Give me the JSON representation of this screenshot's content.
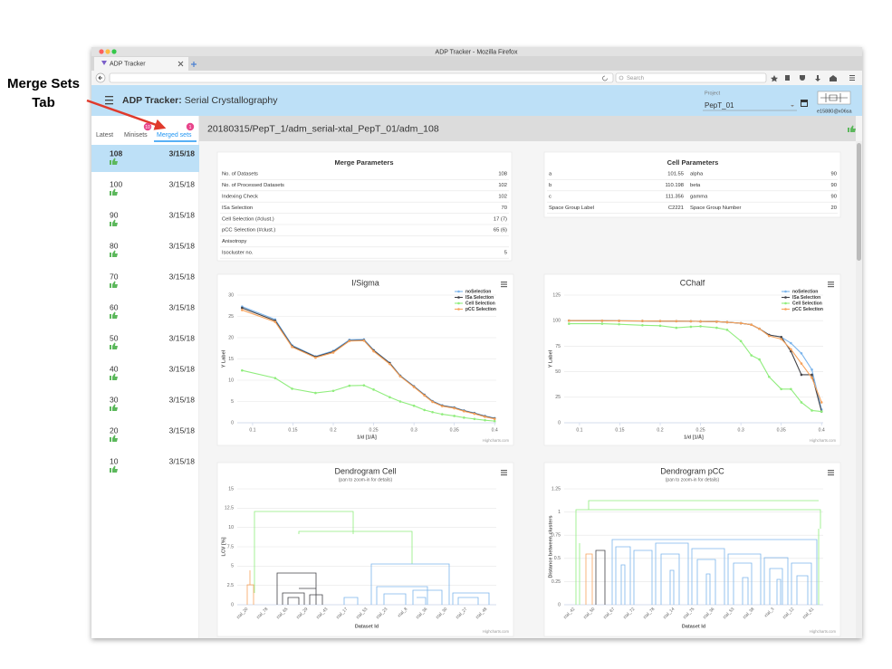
{
  "annotation": [
    "Merge Sets",
    "Tab"
  ],
  "browser": {
    "window_title": "ADP Tracker - Mozilla Firefox",
    "tab": "ADP Tracker",
    "search": "Search"
  },
  "header": {
    "title_bold": "ADP Tracker:",
    "title": "Serial Crystallography",
    "project_label": "Project",
    "project": "PepT_01",
    "user": "e15880@x06sa"
  },
  "sidebar": {
    "tabs": [
      "Latest",
      "Minisets",
      "Merged sets"
    ],
    "badges": [
      10,
      1
    ],
    "items": [
      {
        "id": 108,
        "date": "3/15/18"
      },
      {
        "id": 100,
        "date": "3/15/18"
      },
      {
        "id": 90,
        "date": "3/15/18"
      },
      {
        "id": 80,
        "date": "3/15/18"
      },
      {
        "id": 70,
        "date": "3/15/18"
      },
      {
        "id": 60,
        "date": "3/15/18"
      },
      {
        "id": 50,
        "date": "3/15/18"
      },
      {
        "id": 40,
        "date": "3/15/18"
      },
      {
        "id": 30,
        "date": "3/15/18"
      },
      {
        "id": 20,
        "date": "3/15/18"
      },
      {
        "id": 10,
        "date": "3/15/18"
      }
    ]
  },
  "path": "20180315/PepT_1/adm_serial-xtal_PepT_01/adm_108",
  "merge_parameters": {
    "title": "Merge Parameters",
    "rows": [
      [
        "No. of Datasets",
        108
      ],
      [
        "No. of Processed Datasets",
        102
      ],
      [
        "Indexing Check",
        102
      ],
      [
        "ISa Selection",
        70
      ],
      [
        "Cell Selection (#clust.)",
        "17 (7)"
      ],
      [
        "pCC Selection (#clust.)",
        "65 (6)"
      ],
      [
        "Anisotropy"
      ],
      [
        "Isocluster no.",
        5
      ]
    ]
  },
  "cell_parameters": {
    "title": "Cell Parameters",
    "rows": [
      [
        "a",
        101.55,
        "alpha",
        90
      ],
      [
        "b",
        110.198,
        "beta",
        90
      ],
      [
        "c",
        111.356,
        "gamma",
        90
      ],
      [
        "Space Group Label",
        "C2221",
        "Space Group Number",
        20
      ]
    ]
  },
  "chart_data": [
    {
      "type": "line",
      "title": "I/Sigma",
      "xlabel": "1/d [1/Å]",
      "ylabel": "Y Label",
      "credits": "Highcharts.com",
      "legend": "top-right",
      "x": [
        0.087,
        0.128,
        0.149,
        0.178,
        0.2,
        0.22,
        0.238,
        0.25,
        0.27,
        0.283,
        0.3,
        0.313,
        0.323,
        0.335,
        0.35,
        0.362,
        0.375,
        0.388,
        0.4
      ],
      "xlim": [
        0.081,
        0.402
      ],
      "xticks": [
        0.1,
        0.15,
        0.2,
        0.25,
        0.3,
        0.35,
        0.4
      ],
      "ylim": [
        0,
        30
      ],
      "yticks": [
        0,
        5,
        10,
        15,
        20,
        25,
        30
      ],
      "series": [
        {
          "name": "noSelection",
          "color": "#7cb5ec",
          "values": [
            27.3,
            24.3,
            18.2,
            15.6,
            16.9,
            19.5,
            19.6,
            17.1,
            14.1,
            11.1,
            8.6,
            6.6,
            5.1,
            4.1,
            3.6,
            2.9,
            2.3,
            1.6,
            1.1
          ]
        },
        {
          "name": "ISa Selection",
          "color": "#434348",
          "values": [
            27,
            24,
            18,
            15.5,
            16.7,
            19.3,
            19.4,
            17,
            14,
            11,
            8.5,
            6.5,
            5,
            4,
            3.5,
            2.8,
            2.2,
            1.5,
            1
          ]
        },
        {
          "name": "Cell Selection",
          "color": "#90ed7d",
          "values": [
            12.3,
            10.5,
            8,
            7,
            7.5,
            8.7,
            8.8,
            7.8,
            6,
            5,
            4,
            3,
            2.5,
            2,
            1.6,
            1.2,
            0.9,
            0.6,
            0.4
          ]
        },
        {
          "name": "pCC Selection",
          "color": "#f7a35c",
          "values": [
            26.5,
            23.7,
            17.8,
            15.3,
            16.5,
            19.2,
            19.3,
            16.8,
            13.8,
            10.9,
            8.4,
            6.4,
            4.9,
            3.9,
            3.4,
            2.7,
            2.1,
            1.4,
            0.9
          ]
        }
      ]
    },
    {
      "type": "line",
      "title": "CChalf",
      "xlabel": "1/d [1/Å]",
      "ylabel": "Y Label",
      "credits": "Highcharts.com",
      "legend": "top-right",
      "x": [
        0.087,
        0.128,
        0.149,
        0.178,
        0.2,
        0.22,
        0.238,
        0.25,
        0.27,
        0.283,
        0.3,
        0.313,
        0.323,
        0.335,
        0.35,
        0.362,
        0.375,
        0.388,
        0.4
      ],
      "xlim": [
        0.081,
        0.402
      ],
      "xticks": [
        0.1,
        0.15,
        0.2,
        0.25,
        0.3,
        0.35,
        0.4
      ],
      "ylim": [
        0,
        125
      ],
      "yticks": [
        0,
        25,
        50,
        75,
        100,
        125
      ],
      "series": [
        {
          "name": "noSelection",
          "color": "#7cb5ec",
          "values": [
            100,
            99.9,
            99.8,
            99.7,
            99.6,
            99.5,
            99.4,
            99.2,
            99,
            98.5,
            97.5,
            96,
            92,
            86,
            84,
            78,
            68,
            52,
            13
          ]
        },
        {
          "name": "ISa Selection",
          "color": "#434348",
          "values": [
            100,
            99.9,
            99.8,
            99.7,
            99.6,
            99.5,
            99.4,
            99.2,
            99,
            98.5,
            97.5,
            96,
            92,
            86,
            84,
            70,
            47,
            47,
            11
          ]
        },
        {
          "name": "Cell Selection",
          "color": "#90ed7d",
          "values": [
            97,
            97,
            96.5,
            95.5,
            95,
            93,
            94,
            94.5,
            93,
            91,
            80,
            66,
            62,
            45,
            33,
            33,
            20,
            12,
            11
          ]
        },
        {
          "name": "pCC Selection",
          "color": "#f7a35c",
          "values": [
            100,
            99.9,
            99.8,
            99.7,
            99.6,
            99.5,
            99.4,
            99.2,
            99,
            98.5,
            97.5,
            96,
            92,
            85,
            82,
            72,
            58,
            44,
            20
          ]
        }
      ]
    },
    {
      "type": "dendrogram",
      "title": "Dendrogram Cell",
      "subtitle": "(pan to zoom-in for details)",
      "xlabel": "Dataset Id",
      "ylabel": "LCV [%]",
      "credits": "Highcharts.com",
      "categories": [
        "xtal_20",
        "xtal_78",
        "xtal_65",
        "xtal_29",
        "xtal_43",
        "xtal_17",
        "xtal_53",
        "xtal_23",
        "xtal_8",
        "xtal_36",
        "xtal_30",
        "xtal_27",
        "xtal_48"
      ],
      "ylim": [
        0,
        15
      ],
      "yticks": [
        0,
        2.5,
        5,
        7.5,
        10,
        12.5,
        15
      ]
    },
    {
      "type": "dendrogram",
      "title": "Dendrogram pCC",
      "subtitle": "(pan to zoom-in for details)",
      "xlabel": "Dataset Id",
      "ylabel": "Distance between clusters",
      "credits": "Highcharts.com",
      "categories": [
        "xtal_42",
        "xtal_50",
        "xtal_67",
        "xtal_72",
        "xtal_78",
        "xtal_14",
        "xtal_75",
        "xtal_36",
        "xtal_53",
        "xtal_38",
        "xtal_3",
        "xtal_12",
        "xtal_61"
      ],
      "ylim": [
        0,
        1.25
      ],
      "yticks": [
        0,
        0.25,
        0.5,
        0.75,
        1,
        1.25
      ]
    }
  ]
}
